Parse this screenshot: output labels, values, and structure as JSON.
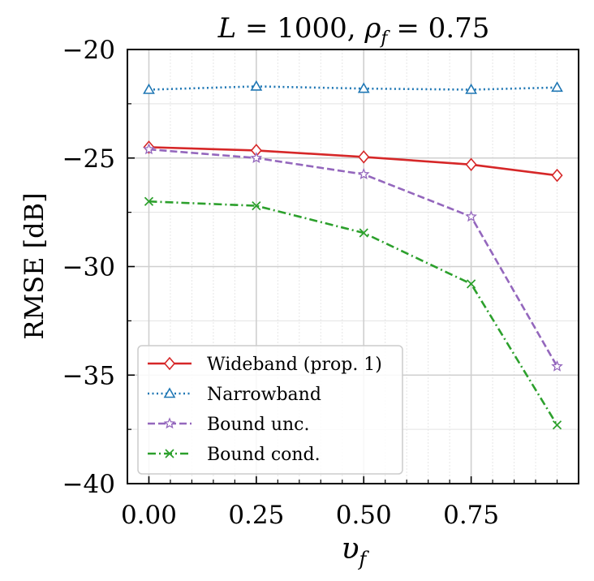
{
  "chart_data": {
    "type": "line",
    "title": "L = 1000, ρ_f = 0.75",
    "title_parts": {
      "L": "L",
      "eq1": " = 1000, ",
      "rho": "ρ",
      "rho_sub": "f",
      "eq2": " = 0.75"
    },
    "xlabel": "υ",
    "xlabel_sub": "f",
    "ylabel": "RMSE [dB]",
    "xlim": [
      -0.05,
      1.0
    ],
    "ylim": [
      -40,
      -20
    ],
    "x_ticks": [
      0.0,
      0.25,
      0.5,
      0.75
    ],
    "x_tick_labels": [
      "0.00",
      "0.25",
      "0.50",
      "0.75"
    ],
    "y_ticks": [
      -20,
      -25,
      -30,
      -35,
      -40
    ],
    "y_tick_labels": [
      "−20",
      "−25",
      "−30",
      "−35",
      "−40"
    ],
    "x_minor_step": 0.05,
    "y_minor_step": 2.5,
    "grid": true,
    "legend_position": "bottom-left",
    "x": [
      0.0,
      0.25,
      0.5,
      0.75,
      0.95
    ],
    "series": [
      {
        "name": "Wideband (prop. 1)",
        "color": "#d62728",
        "style": "solid",
        "marker": "diamond",
        "values": [
          -24.5,
          -24.65,
          -24.95,
          -25.3,
          -25.8
        ]
      },
      {
        "name": "Narrowband",
        "color": "#1f77b4",
        "style": "dotted",
        "marker": "triangle",
        "values": [
          -21.85,
          -21.7,
          -21.8,
          -21.85,
          -21.75
        ]
      },
      {
        "name": "Bound unc.",
        "color": "#9467bd",
        "style": "dashed",
        "marker": "star",
        "values": [
          -24.6,
          -25.0,
          -25.75,
          -27.7,
          -34.6
        ]
      },
      {
        "name": "Bound cond.",
        "color": "#2ca02c",
        "style": "dashdot",
        "marker": "x",
        "values": [
          -27.0,
          -27.2,
          -28.45,
          -30.8,
          -37.3
        ]
      }
    ]
  }
}
